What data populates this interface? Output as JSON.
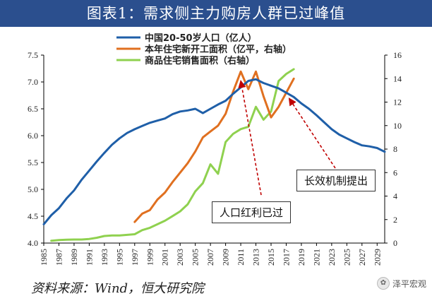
{
  "title": "图表1：需求侧主力购房人群已过峰值",
  "source": "资料来源：Wind，恒大研究院",
  "watermark": "泽平宏观",
  "watermark_icon": "wechat-icon",
  "callouts": {
    "peak_demographic": "人口红利已过",
    "long_term_mechanism": "长效机制提出"
  },
  "colors": {
    "population": "#1f5fa8",
    "new_starts": "#e07020",
    "sales": "#8fd14f",
    "arrow": "#c00000",
    "title_bg": "#2b4f8e"
  },
  "chart_data": {
    "type": "line",
    "title": "",
    "xlabel": "",
    "ylabel": "",
    "x_ticks": [
      "1985",
      "1987",
      "1989",
      "1991",
      "1993",
      "1995",
      "1997",
      "1999",
      "2001",
      "2003",
      "2005",
      "2007",
      "2009",
      "2011",
      "2013",
      "2015",
      "2017",
      "2019",
      "2021",
      "2023",
      "2025",
      "2027",
      "2029"
    ],
    "ylim_left": [
      4.0,
      7.5
    ],
    "yticks_left": [
      "4.0",
      "4.5",
      "5.0",
      "5.5",
      "6.0",
      "6.5",
      "7.0",
      "7.5"
    ],
    "ylim_right": [
      0,
      16
    ],
    "yticks_right": [
      "0",
      "2",
      "4",
      "6",
      "8",
      "10",
      "12",
      "14",
      "16"
    ],
    "grid": false,
    "legend_position": "top-center",
    "series": [
      {
        "name": "中国20-50岁人口（亿人）",
        "axis": "left",
        "x": [
          1985,
          1986,
          1987,
          1988,
          1989,
          1990,
          1991,
          1992,
          1993,
          1994,
          1995,
          1996,
          1997,
          1998,
          1999,
          2000,
          2001,
          2002,
          2003,
          2004,
          2005,
          2006,
          2007,
          2008,
          2009,
          2010,
          2011,
          2012,
          2013,
          2014,
          2015,
          2016,
          2017,
          2018,
          2019,
          2020,
          2021,
          2022,
          2023,
          2024,
          2025,
          2026,
          2027,
          2028,
          2029,
          2030
        ],
        "values": [
          4.35,
          4.52,
          4.65,
          4.83,
          4.98,
          5.18,
          5.35,
          5.52,
          5.68,
          5.83,
          5.95,
          6.05,
          6.12,
          6.18,
          6.24,
          6.28,
          6.32,
          6.4,
          6.45,
          6.47,
          6.5,
          6.42,
          6.5,
          6.58,
          6.65,
          6.78,
          6.9,
          7.02,
          7.05,
          6.98,
          6.93,
          6.88,
          6.8,
          6.72,
          6.6,
          6.5,
          6.38,
          6.25,
          6.12,
          6.02,
          5.95,
          5.88,
          5.82,
          5.8,
          5.77,
          5.7
        ]
      },
      {
        "name": "本年住宅新开工面积（亿平，右轴）",
        "axis": "right",
        "x": [
          1997,
          1998,
          1999,
          2000,
          2001,
          2002,
          2003,
          2004,
          2005,
          2006,
          2007,
          2008,
          2009,
          2010,
          2011,
          2012,
          2013,
          2014,
          2015,
          2016,
          2017,
          2018
        ],
        "values": [
          1.8,
          2.5,
          2.8,
          3.7,
          4.3,
          5.2,
          6.0,
          6.8,
          7.8,
          9.0,
          9.5,
          10.0,
          11.0,
          12.9,
          14.6,
          13.1,
          14.6,
          12.5,
          10.7,
          11.6,
          12.8,
          14.0
        ]
      },
      {
        "name": "商品住宅销售面积（右轴）",
        "axis": "right",
        "x": [
          1986,
          1987,
          1988,
          1989,
          1990,
          1991,
          1992,
          1993,
          1994,
          1995,
          1996,
          1997,
          1998,
          1999,
          2000,
          2001,
          2002,
          2003,
          2004,
          2005,
          2006,
          2007,
          2008,
          2009,
          2010,
          2011,
          2012,
          2013,
          2014,
          2015,
          2016,
          2017,
          2018
        ],
        "values": [
          0.2,
          0.25,
          0.28,
          0.3,
          0.3,
          0.35,
          0.45,
          0.6,
          0.65,
          0.65,
          0.7,
          0.75,
          1.1,
          1.3,
          1.6,
          1.9,
          2.3,
          2.7,
          3.3,
          4.4,
          5.1,
          6.7,
          5.9,
          8.6,
          9.3,
          9.7,
          9.9,
          11.6,
          10.5,
          11.2,
          13.8,
          14.4,
          14.8
        ]
      }
    ]
  }
}
